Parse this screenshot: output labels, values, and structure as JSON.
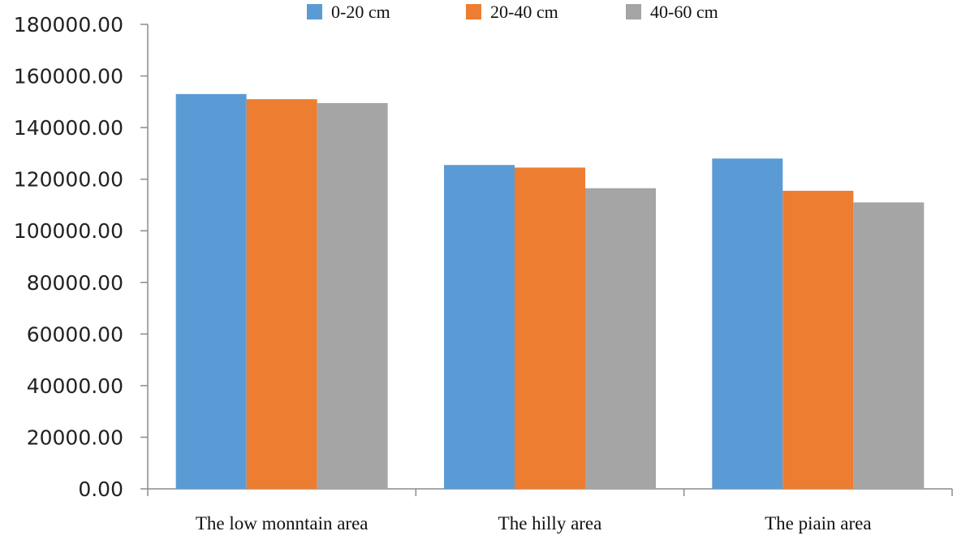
{
  "chart_data": {
    "type": "bar",
    "title": "",
    "xlabel": "",
    "ylabel": "",
    "categories": [
      "The low monntain area",
      "The hilly area",
      "The piain area"
    ],
    "series": [
      {
        "name": "0-20 cm",
        "color": "#5b9bd5",
        "values": [
          153000,
          125500,
          128000
        ]
      },
      {
        "name": "20-40 cm",
        "color": "#ed7d31",
        "values": [
          151000,
          124500,
          115500
        ]
      },
      {
        "name": "40-60 cm",
        "color": "#a5a5a5",
        "values": [
          149500,
          116500,
          111000
        ]
      }
    ],
    "ylim": [
      0,
      180000
    ],
    "yticks": [
      0,
      20000,
      40000,
      60000,
      80000,
      100000,
      120000,
      140000,
      160000,
      180000
    ],
    "ytick_labels": [
      "0.00",
      "20000.00",
      "40000.00",
      "60000.00",
      "80000.00",
      "100000.00",
      "120000.00",
      "140000.00",
      "160000.00",
      "180000.00"
    ],
    "grid": false,
    "legend_position": "top"
  }
}
